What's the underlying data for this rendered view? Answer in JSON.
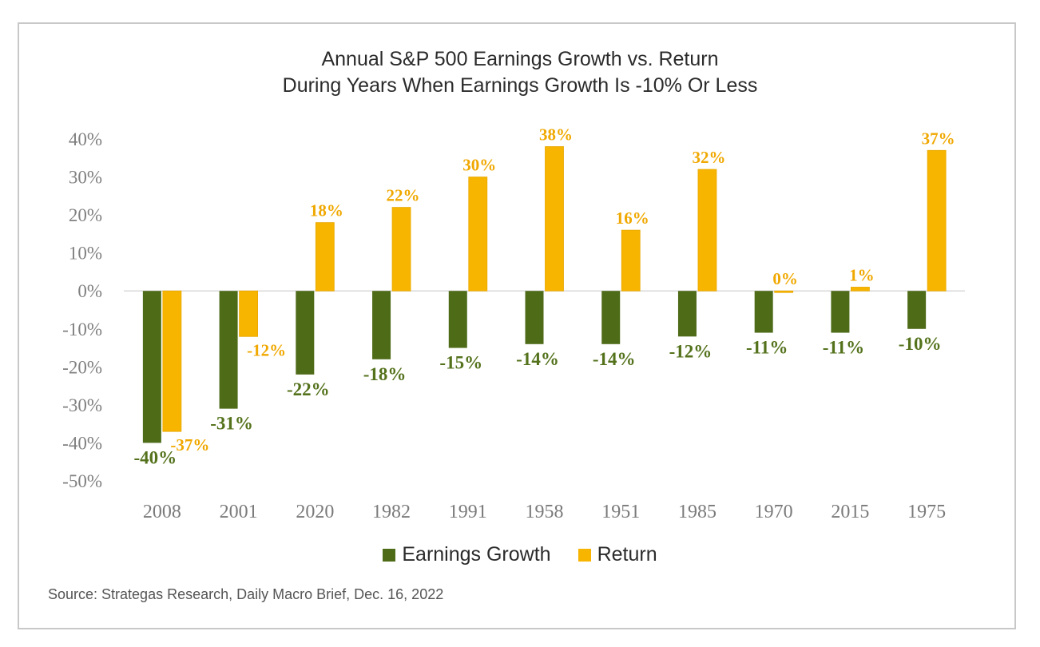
{
  "chart_data": {
    "type": "bar",
    "title": [
      "Annual S&P 500 Earnings Growth vs. Return",
      "During Years When Earnings Growth Is -10% Or Less"
    ],
    "categories": [
      "2008",
      "2001",
      "2020",
      "1982",
      "1991",
      "1958",
      "1951",
      "1985",
      "1970",
      "2015",
      "1975"
    ],
    "series": [
      {
        "name": "Earnings Growth",
        "color": "#4e6b18",
        "values": [
          -40,
          -31,
          -22,
          -18,
          -15,
          -14,
          -14,
          -12,
          -11,
          -11,
          -10
        ]
      },
      {
        "name": "Return",
        "color": "#f7b500",
        "values": [
          -37,
          -12,
          18,
          22,
          30,
          38,
          16,
          32,
          0,
          1,
          37
        ]
      }
    ],
    "data_labels": {
      "earnings": [
        "-40%",
        "-31%",
        "-22%",
        "-18%",
        "-15%",
        "-14%",
        "-14%",
        "-12%",
        "-11%",
        "-11%",
        "-10%"
      ],
      "return": [
        "-37%",
        "-12%",
        "18%",
        "22%",
        "30%",
        "38%",
        "16%",
        "32%",
        "0%",
        "1%",
        "37%"
      ]
    },
    "y_ticks": [
      "40%",
      "30%",
      "20%",
      "10%",
      "0%",
      "-10%",
      "-20%",
      "-30%",
      "-40%",
      "-50%"
    ],
    "ylim": [
      -50,
      40
    ],
    "legend_position": "bottom",
    "grid": false
  },
  "source": "Source: Strategas Research, Daily Macro Brief, Dec. 16, 2022",
  "colors": {
    "earnings_label": "#54721c",
    "return_label": "#f0a800",
    "axis": "#d9d9d9"
  }
}
